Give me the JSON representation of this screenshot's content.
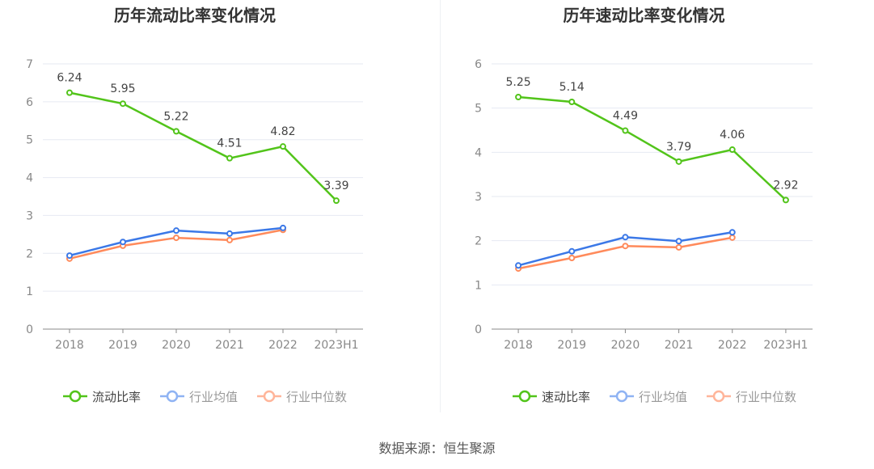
{
  "chart_data": [
    {
      "type": "line",
      "title": "历年流动比率变化情况",
      "categories": [
        "2018",
        "2019",
        "2020",
        "2021",
        "2022",
        "2023H1"
      ],
      "ylim": [
        0,
        7
      ],
      "yticks": [
        0,
        1,
        2,
        3,
        4,
        5,
        6,
        7
      ],
      "grid": true,
      "legend_position": "bottom",
      "series": [
        {
          "name": "流动比率",
          "color": "#52c41a",
          "values": [
            6.24,
            5.95,
            5.22,
            4.51,
            4.82,
            3.39
          ],
          "labels": [
            "6.24",
            "5.95",
            "5.22",
            "4.51",
            "4.82",
            "3.39"
          ]
        },
        {
          "name": "行业均值",
          "color": "#3b78e7",
          "values": [
            1.94,
            2.3,
            2.6,
            2.52,
            2.67,
            null
          ]
        },
        {
          "name": "行业中位数",
          "color": "#ff8a5b",
          "values": [
            1.86,
            2.2,
            2.41,
            2.35,
            2.62,
            null
          ]
        }
      ]
    },
    {
      "type": "line",
      "title": "历年速动比率变化情况",
      "categories": [
        "2018",
        "2019",
        "2020",
        "2021",
        "2022",
        "2023H1"
      ],
      "ylim": [
        0,
        6
      ],
      "yticks": [
        0,
        1,
        2,
        3,
        4,
        5,
        6
      ],
      "grid": true,
      "legend_position": "bottom",
      "series": [
        {
          "name": "速动比率",
          "color": "#52c41a",
          "values": [
            5.25,
            5.14,
            4.49,
            3.79,
            4.06,
            2.92
          ],
          "labels": [
            "5.25",
            "5.14",
            "4.49",
            "3.79",
            "4.06",
            "2.92"
          ]
        },
        {
          "name": "行业均值",
          "color": "#3b78e7",
          "values": [
            1.44,
            1.76,
            2.08,
            1.99,
            2.19,
            null
          ]
        },
        {
          "name": "行业中位数",
          "color": "#ff8a5b",
          "values": [
            1.37,
            1.61,
            1.88,
            1.85,
            2.07,
            null
          ]
        }
      ]
    }
  ],
  "footer": {
    "source": "数据来源：恒生聚源"
  }
}
